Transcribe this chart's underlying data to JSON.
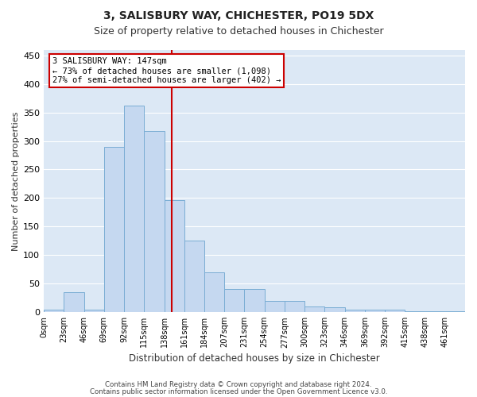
{
  "title1": "3, SALISBURY WAY, CHICHESTER, PO19 5DX",
  "title2": "Size of property relative to detached houses in Chichester",
  "xlabel": "Distribution of detached houses by size in Chichester",
  "ylabel": "Number of detached properties",
  "bin_labels": [
    "0sqm",
    "23sqm",
    "46sqm",
    "69sqm",
    "92sqm",
    "115sqm",
    "138sqm",
    "161sqm",
    "184sqm",
    "207sqm",
    "231sqm",
    "254sqm",
    "277sqm",
    "300sqm",
    "323sqm",
    "346sqm",
    "369sqm",
    "392sqm",
    "415sqm",
    "438sqm",
    "461sqm"
  ],
  "bar_values": [
    5,
    35,
    5,
    290,
    362,
    318,
    197,
    125,
    70,
    40,
    40,
    20,
    20,
    10,
    8,
    4,
    4,
    5,
    2,
    2,
    1
  ],
  "bar_color": "#c5d8f0",
  "bar_edgecolor": "#7aadd4",
  "fig_bg_color": "#ffffff",
  "axes_bg_color": "#dce8f5",
  "grid_color": "#ffffff",
  "vline_color": "#cc0000",
  "annotation_text": "3 SALISBURY WAY: 147sqm\n← 73% of detached houses are smaller (1,098)\n27% of semi-detached houses are larger (402) →",
  "annotation_box_facecolor": "#ffffff",
  "annotation_box_edgecolor": "#cc0000",
  "ylim": [
    0,
    460
  ],
  "yticks": [
    0,
    50,
    100,
    150,
    200,
    250,
    300,
    350,
    400,
    450
  ],
  "footnote1": "Contains HM Land Registry data © Crown copyright and database right 2024.",
  "footnote2": "Contains public sector information licensed under the Open Government Licence v3.0."
}
